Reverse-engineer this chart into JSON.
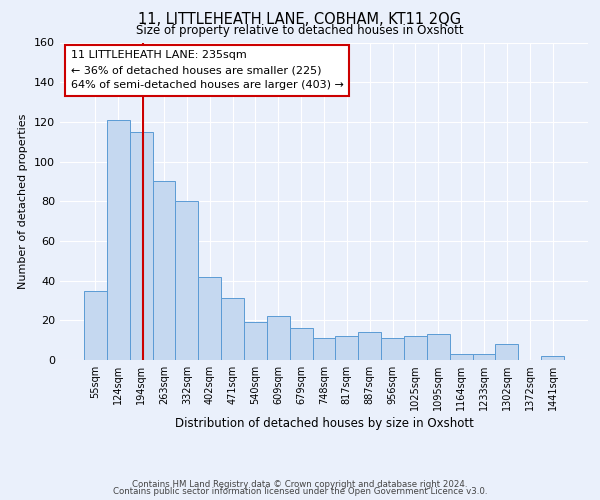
{
  "title": "11, LITTLEHEATH LANE, COBHAM, KT11 2QG",
  "subtitle": "Size of property relative to detached houses in Oxshott",
  "xlabel": "Distribution of detached houses by size in Oxshott",
  "ylabel": "Number of detached properties",
  "bin_labels": [
    "55sqm",
    "124sqm",
    "194sqm",
    "263sqm",
    "332sqm",
    "402sqm",
    "471sqm",
    "540sqm",
    "609sqm",
    "679sqm",
    "748sqm",
    "817sqm",
    "887sqm",
    "956sqm",
    "1025sqm",
    "1095sqm",
    "1164sqm",
    "1233sqm",
    "1302sqm",
    "1372sqm",
    "1441sqm"
  ],
  "bar_heights": [
    35,
    121,
    115,
    90,
    80,
    42,
    31,
    19,
    22,
    16,
    11,
    12,
    14,
    11,
    12,
    13,
    3,
    3,
    8,
    0,
    2
  ],
  "bar_color": "#c5d8f0",
  "bar_edgecolor": "#5b9bd5",
  "property_line_color": "#cc0000",
  "annotation_line1": "11 LITTLEHEATH LANE: 235sqm",
  "annotation_line2": "← 36% of detached houses are smaller (225)",
  "annotation_line3": "64% of semi-detached houses are larger (403) →",
  "annotation_box_edgecolor": "#cc0000",
  "ylim": [
    0,
    160
  ],
  "yticks": [
    0,
    20,
    40,
    60,
    80,
    100,
    120,
    140,
    160
  ],
  "background_color": "#eaf0fb",
  "grid_color": "#ffffff",
  "footer_line1": "Contains HM Land Registry data © Crown copyright and database right 2024.",
  "footer_line2": "Contains public sector information licensed under the Open Government Licence v3.0."
}
